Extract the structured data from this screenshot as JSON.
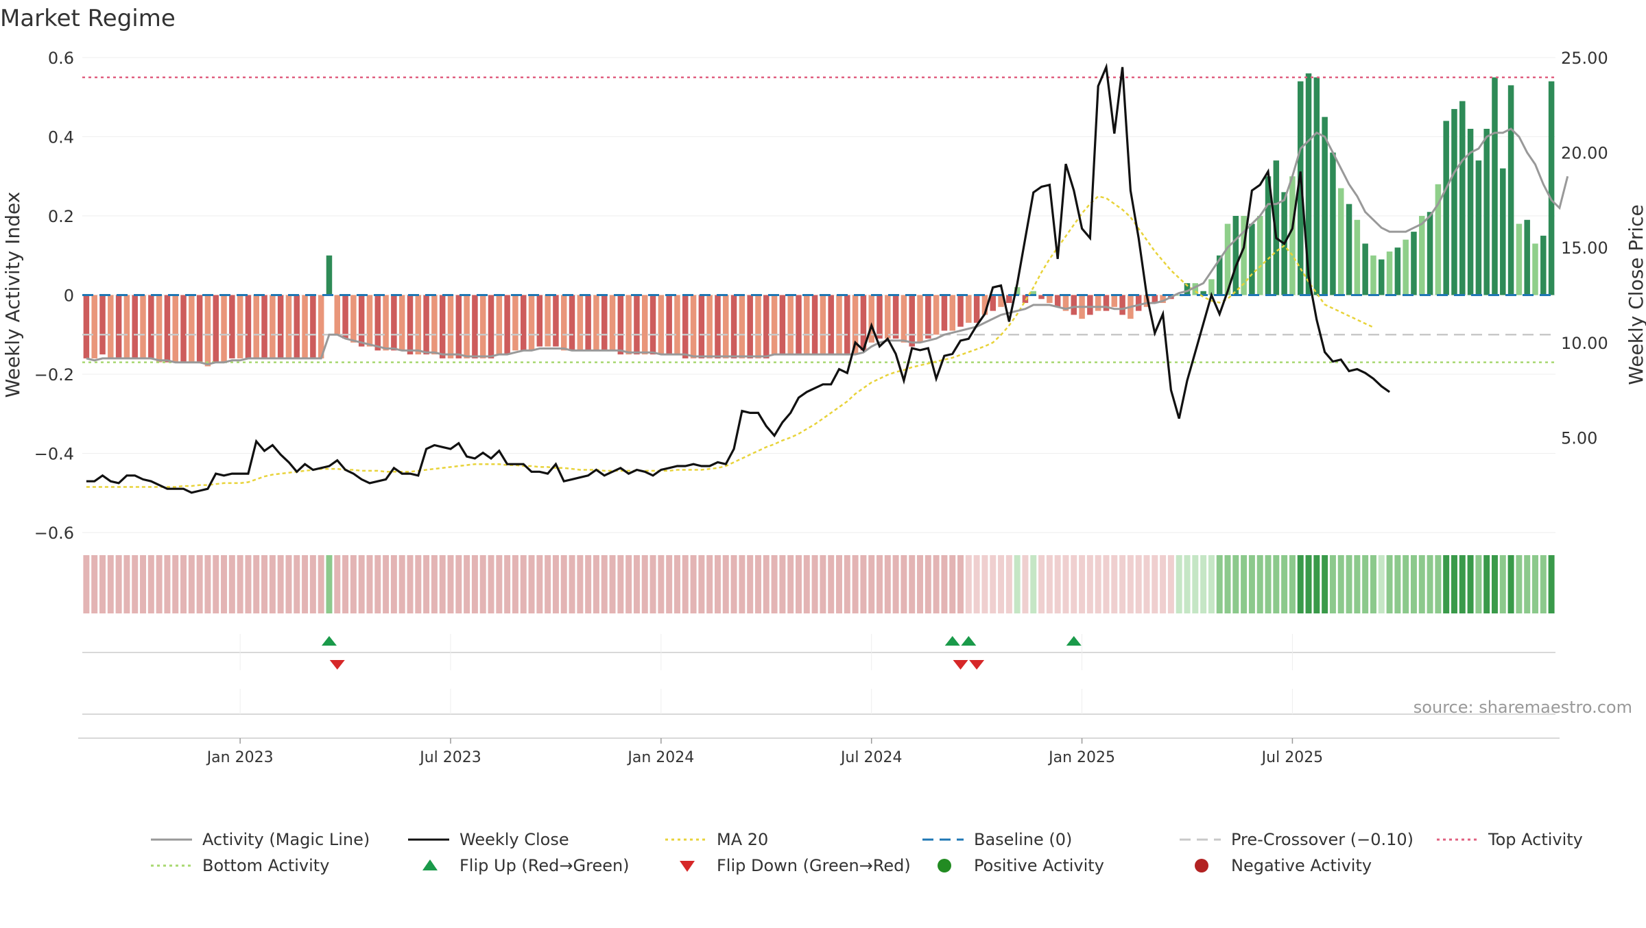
{
  "chart_data": {
    "type": "bar",
    "title": "Market Regime",
    "ylabel": "Weekly Activity Index",
    "y2label": "Weekly Close Price",
    "ylim": [
      -0.6,
      0.6
    ],
    "y2lim": [
      0,
      25
    ],
    "yticks": [
      "0.6",
      "0.4",
      "0.2",
      "0",
      "−0.2",
      "−0.4",
      "−0.6"
    ],
    "y2ticks": [
      "25.00",
      "20.00",
      "15.00",
      "10.00",
      "5.00"
    ],
    "y2tick_values": [
      25,
      20,
      15,
      10,
      5
    ],
    "yaxis_ticks": [
      0.6,
      0.4,
      0.2,
      0,
      -0.2,
      -0.4,
      -0.6
    ],
    "xticks": [
      {
        "label": "Jan 2023",
        "week": 19
      },
      {
        "label": "Jul 2023",
        "week": 45
      },
      {
        "label": "Jan 2024",
        "week": 71
      },
      {
        "label": "Jul 2024",
        "week": 97
      },
      {
        "label": "Jan 2025",
        "week": 123
      },
      {
        "label": "Jul 2025",
        "week": 149
      }
    ],
    "source": "source: sharemaestro.com",
    "reference_lines": {
      "baseline": 0,
      "pre_crossover": -0.1,
      "top_activity": 0.55,
      "bottom_activity": -0.17
    },
    "colors": {
      "positive_strong": "#2e8b57",
      "positive_light": "#8fcf8a",
      "negative_strong": "#cd5c5c",
      "negative_light": "#e9967a",
      "magic_line": "#999999",
      "weekly_close": "#111111",
      "ma20": "#e8d33a",
      "baseline": "#1f77b4",
      "pre_crossover": "#c8c8c8",
      "top_activity": "#e06080",
      "bottom_activity": "#a8d870",
      "flip_up": "#1a9a4a",
      "flip_down": "#d62728",
      "positive_dot": "#228B22",
      "negative_dot": "#b22222"
    },
    "activity": [
      -0.16,
      -0.16,
      -0.15,
      -0.16,
      -0.16,
      -0.16,
      -0.16,
      -0.16,
      -0.16,
      -0.17,
      -0.17,
      -0.17,
      -0.17,
      -0.17,
      -0.17,
      -0.18,
      -0.17,
      -0.17,
      -0.16,
      -0.16,
      -0.16,
      -0.16,
      -0.16,
      -0.16,
      -0.16,
      -0.16,
      -0.16,
      -0.16,
      -0.16,
      -0.16,
      0.1,
      -0.1,
      -0.11,
      -0.12,
      -0.13,
      -0.13,
      -0.14,
      -0.14,
      -0.14,
      -0.14,
      -0.15,
      -0.15,
      -0.15,
      -0.15,
      -0.16,
      -0.16,
      -0.16,
      -0.16,
      -0.16,
      -0.16,
      -0.16,
      -0.15,
      -0.15,
      -0.14,
      -0.14,
      -0.14,
      -0.13,
      -0.13,
      -0.13,
      -0.14,
      -0.14,
      -0.14,
      -0.14,
      -0.14,
      -0.14,
      -0.14,
      -0.15,
      -0.15,
      -0.15,
      -0.15,
      -0.15,
      -0.15,
      -0.15,
      -0.15,
      -0.16,
      -0.16,
      -0.16,
      -0.16,
      -0.16,
      -0.16,
      -0.16,
      -0.16,
      -0.16,
      -0.16,
      -0.16,
      -0.15,
      -0.15,
      -0.15,
      -0.15,
      -0.15,
      -0.15,
      -0.15,
      -0.15,
      -0.15,
      -0.15,
      -0.15,
      -0.14,
      -0.12,
      -0.11,
      -0.11,
      -0.11,
      -0.12,
      -0.13,
      -0.12,
      -0.11,
      -0.1,
      -0.09,
      -0.09,
      -0.08,
      -0.07,
      -0.07,
      -0.05,
      -0.04,
      -0.03,
      -0.02,
      0.02,
      -0.02,
      0.01,
      -0.01,
      -0.02,
      -0.03,
      -0.04,
      -0.05,
      -0.06,
      -0.05,
      -0.04,
      -0.04,
      -0.03,
      -0.05,
      -0.06,
      -0.04,
      -0.03,
      -0.02,
      -0.02,
      -0.01,
      0.0,
      0.03,
      0.03,
      0.01,
      0.04,
      0.1,
      0.18,
      0.2,
      0.2,
      0.18,
      0.2,
      0.3,
      0.34,
      0.26,
      0.3,
      0.54,
      0.56,
      0.55,
      0.45,
      0.36,
      0.27,
      0.23,
      0.19,
      0.13,
      0.1,
      0.09,
      0.11,
      0.12,
      0.14,
      0.16,
      0.2,
      0.21,
      0.28,
      0.44,
      0.47,
      0.49,
      0.42,
      0.34,
      0.42,
      0.55,
      0.32,
      0.53,
      0.18,
      0.19,
      0.13,
      0.15,
      0.54
    ],
    "magic_line": [
      -0.16,
      -0.165,
      -0.16,
      -0.16,
      -0.16,
      -0.16,
      -0.16,
      -0.16,
      -0.16,
      -0.165,
      -0.165,
      -0.17,
      -0.17,
      -0.17,
      -0.17,
      -0.175,
      -0.17,
      -0.17,
      -0.165,
      -0.165,
      -0.16,
      -0.16,
      -0.16,
      -0.16,
      -0.16,
      -0.16,
      -0.16,
      -0.16,
      -0.16,
      -0.16,
      -0.1,
      -0.1,
      -0.11,
      -0.115,
      -0.12,
      -0.125,
      -0.13,
      -0.135,
      -0.135,
      -0.14,
      -0.14,
      -0.14,
      -0.145,
      -0.145,
      -0.15,
      -0.15,
      -0.15,
      -0.155,
      -0.155,
      -0.155,
      -0.155,
      -0.15,
      -0.15,
      -0.145,
      -0.14,
      -0.14,
      -0.135,
      -0.135,
      -0.135,
      -0.135,
      -0.14,
      -0.14,
      -0.14,
      -0.14,
      -0.14,
      -0.14,
      -0.14,
      -0.145,
      -0.145,
      -0.145,
      -0.145,
      -0.15,
      -0.15,
      -0.15,
      -0.15,
      -0.155,
      -0.155,
      -0.155,
      -0.155,
      -0.155,
      -0.155,
      -0.155,
      -0.155,
      -0.155,
      -0.155,
      -0.15,
      -0.15,
      -0.15,
      -0.15,
      -0.15,
      -0.15,
      -0.15,
      -0.15,
      -0.15,
      -0.15,
      -0.15,
      -0.145,
      -0.13,
      -0.12,
      -0.115,
      -0.115,
      -0.115,
      -0.12,
      -0.12,
      -0.115,
      -0.11,
      -0.1,
      -0.095,
      -0.09,
      -0.085,
      -0.08,
      -0.07,
      -0.06,
      -0.05,
      -0.045,
      -0.04,
      -0.035,
      -0.025,
      -0.025,
      -0.025,
      -0.03,
      -0.035,
      -0.03,
      -0.03,
      -0.03,
      -0.03,
      -0.03,
      -0.035,
      -0.035,
      -0.03,
      -0.025,
      -0.02,
      -0.02,
      -0.015,
      -0.005,
      0.005,
      0.01,
      0.02,
      0.03,
      0.06,
      0.09,
      0.12,
      0.14,
      0.16,
      0.18,
      0.2,
      0.23,
      0.23,
      0.24,
      0.3,
      0.37,
      0.39,
      0.41,
      0.4,
      0.36,
      0.32,
      0.28,
      0.25,
      0.21,
      0.19,
      0.17,
      0.16,
      0.16,
      0.16,
      0.17,
      0.18,
      0.2,
      0.23,
      0.27,
      0.31,
      0.34,
      0.36,
      0.37,
      0.4,
      0.41,
      0.41,
      0.42,
      0.4,
      0.36,
      0.33,
      0.28,
      0.24,
      0.22,
      0.3
    ],
    "weekly_close": [
      2.7,
      2.7,
      3.0,
      2.7,
      2.6,
      3.0,
      3.0,
      2.8,
      2.7,
      2.5,
      2.3,
      2.3,
      2.3,
      2.1,
      2.2,
      2.3,
      3.1,
      3.0,
      3.1,
      3.1,
      3.1,
      4.8,
      4.3,
      4.6,
      4.1,
      3.7,
      3.2,
      3.6,
      3.3,
      3.4,
      3.5,
      3.8,
      3.3,
      3.1,
      2.8,
      2.6,
      2.7,
      2.8,
      3.4,
      3.1,
      3.1,
      3.0,
      4.4,
      4.6,
      4.5,
      4.4,
      4.7,
      4.0,
      3.9,
      4.2,
      3.9,
      4.3,
      3.6,
      3.6,
      3.6,
      3.2,
      3.2,
      3.1,
      3.6,
      2.7,
      2.8,
      2.9,
      3.0,
      3.3,
      3.0,
      3.2,
      3.4,
      3.1,
      3.3,
      3.2,
      3.0,
      3.3,
      3.4,
      3.5,
      3.5,
      3.6,
      3.5,
      3.5,
      3.7,
      3.6,
      4.4,
      6.4,
      6.3,
      6.3,
      5.6,
      5.1,
      5.8,
      6.3,
      7.1,
      7.4,
      7.6,
      7.8,
      7.8,
      8.6,
      8.4,
      10.0,
      9.6,
      10.9,
      9.8,
      10.2,
      9.4,
      8.0,
      9.7,
      9.6,
      9.7,
      8.1,
      9.3,
      9.4,
      10.1,
      10.2,
      10.9,
      11.5,
      12.9,
      13.0,
      11.1,
      13.1,
      15.5,
      17.9,
      18.2,
      18.3,
      14.4,
      19.4,
      18.0,
      16.0,
      15.5,
      23.5,
      24.5,
      21.0,
      24.5,
      18.0,
      15.5,
      12.5,
      10.5,
      11.5,
      7.5,
      6.0,
      8.0,
      9.5,
      11.0,
      12.5,
      11.5,
      12.7,
      14.0,
      15.0,
      18.0,
      18.3,
      19.0,
      15.5,
      15.2,
      16.0,
      19.0,
      13.5,
      11.2,
      9.5,
      9.0,
      9.1,
      8.5,
      8.6,
      8.4,
      8.1,
      7.7,
      7.4
    ],
    "ma20": [
      2.4,
      2.4,
      2.4,
      2.4,
      2.4,
      2.4,
      2.4,
      2.4,
      2.4,
      2.4,
      2.4,
      2.4,
      2.45,
      2.45,
      2.5,
      2.5,
      2.55,
      2.6,
      2.6,
      2.6,
      2.65,
      2.8,
      2.95,
      3.05,
      3.1,
      3.15,
      3.2,
      3.25,
      3.3,
      3.35,
      3.35,
      3.35,
      3.3,
      3.3,
      3.25,
      3.25,
      3.25,
      3.2,
      3.2,
      3.2,
      3.2,
      3.25,
      3.3,
      3.35,
      3.4,
      3.45,
      3.5,
      3.55,
      3.6,
      3.6,
      3.6,
      3.6,
      3.55,
      3.55,
      3.5,
      3.5,
      3.45,
      3.45,
      3.4,
      3.4,
      3.35,
      3.3,
      3.3,
      3.3,
      3.25,
      3.25,
      3.25,
      3.25,
      3.25,
      3.25,
      3.25,
      3.25,
      3.25,
      3.3,
      3.3,
      3.3,
      3.3,
      3.35,
      3.4,
      3.5,
      3.7,
      3.9,
      4.1,
      4.3,
      4.5,
      4.65,
      4.85,
      5.0,
      5.2,
      5.45,
      5.7,
      6.0,
      6.3,
      6.6,
      6.9,
      7.3,
      7.6,
      7.9,
      8.1,
      8.3,
      8.45,
      8.55,
      8.7,
      8.8,
      8.9,
      9.0,
      9.1,
      9.2,
      9.35,
      9.5,
      9.65,
      9.8,
      10.0,
      10.4,
      10.9,
      11.5,
      12.2,
      12.9,
      13.7,
      14.4,
      15.0,
      15.6,
      16.2,
      16.8,
      17.3,
      17.7,
      17.6,
      17.3,
      17.0,
      16.6,
      16.0,
      15.4,
      14.8,
      14.3,
      13.8,
      13.4,
      13.0,
      12.7,
      12.4,
      12.2,
      12.1,
      12.3,
      12.7,
      13.1,
      13.6,
      14.0,
      14.4,
      14.8,
      15.1,
      14.6,
      13.9,
      13.2,
      12.6,
      12.0,
      11.8,
      11.6,
      11.4,
      11.2,
      11.0,
      10.8
    ],
    "regime_shades": {
      "strong_pos": "#3a9a4a",
      "pos": "#8cc98c",
      "light_pos": "#c5e6c5",
      "light_neg": "#efcfcf",
      "neg": "#e3b4b4"
    },
    "flip_up_weeks": [
      30,
      107,
      109,
      122
    ],
    "flip_down_weeks": [
      31,
      108,
      110
    ],
    "legend": [
      {
        "label": "Activity (Magic Line)",
        "kind": "line",
        "color": "#999999"
      },
      {
        "label": "Weekly Close",
        "kind": "line",
        "color": "#111111"
      },
      {
        "label": "MA 20",
        "kind": "dotted",
        "color": "#e8d33a"
      },
      {
        "label": "Baseline (0)",
        "kind": "dashed",
        "color": "#1f77b4"
      },
      {
        "label": "Pre-Crossover (−0.10)",
        "kind": "dashed",
        "color": "#c8c8c8"
      },
      {
        "label": "Top Activity",
        "kind": "dotted",
        "color": "#e06080"
      },
      {
        "label": "Bottom Activity",
        "kind": "dotted",
        "color": "#a8d870"
      },
      {
        "label": "Flip Up (Red→Green)",
        "kind": "triangle-up",
        "color": "#1a9a4a"
      },
      {
        "label": "Flip Down (Green→Red)",
        "kind": "triangle-down",
        "color": "#d62728"
      },
      {
        "label": "Positive Activity",
        "kind": "dot",
        "color": "#228B22"
      },
      {
        "label": "Negative Activity",
        "kind": "dot",
        "color": "#b22222"
      }
    ]
  }
}
